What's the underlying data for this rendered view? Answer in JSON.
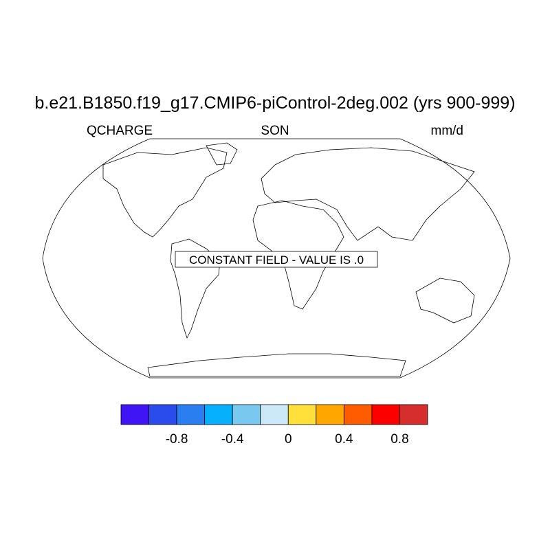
{
  "title": "b.e21.B1850.f19_g17.CMIP6-piControl-2deg.002 (yrs 900-999)",
  "left_string": "QCHARGE",
  "center_string": "SON",
  "right_string": "mm/d",
  "annotation": "CONSTANT FIELD - VALUE IS .0",
  "colorbar": {
    "colors": [
      "#3f14f5",
      "#2a4cec",
      "#2a7ef0",
      "#06b0fd",
      "#78c8f0",
      "#cce9f8",
      "#ffe03a",
      "#ffa600",
      "#ff5c00",
      "#fc0000",
      "#d62d2d"
    ],
    "ticks": [
      -0.8,
      -0.4,
      0,
      0.4,
      0.8
    ]
  }
}
